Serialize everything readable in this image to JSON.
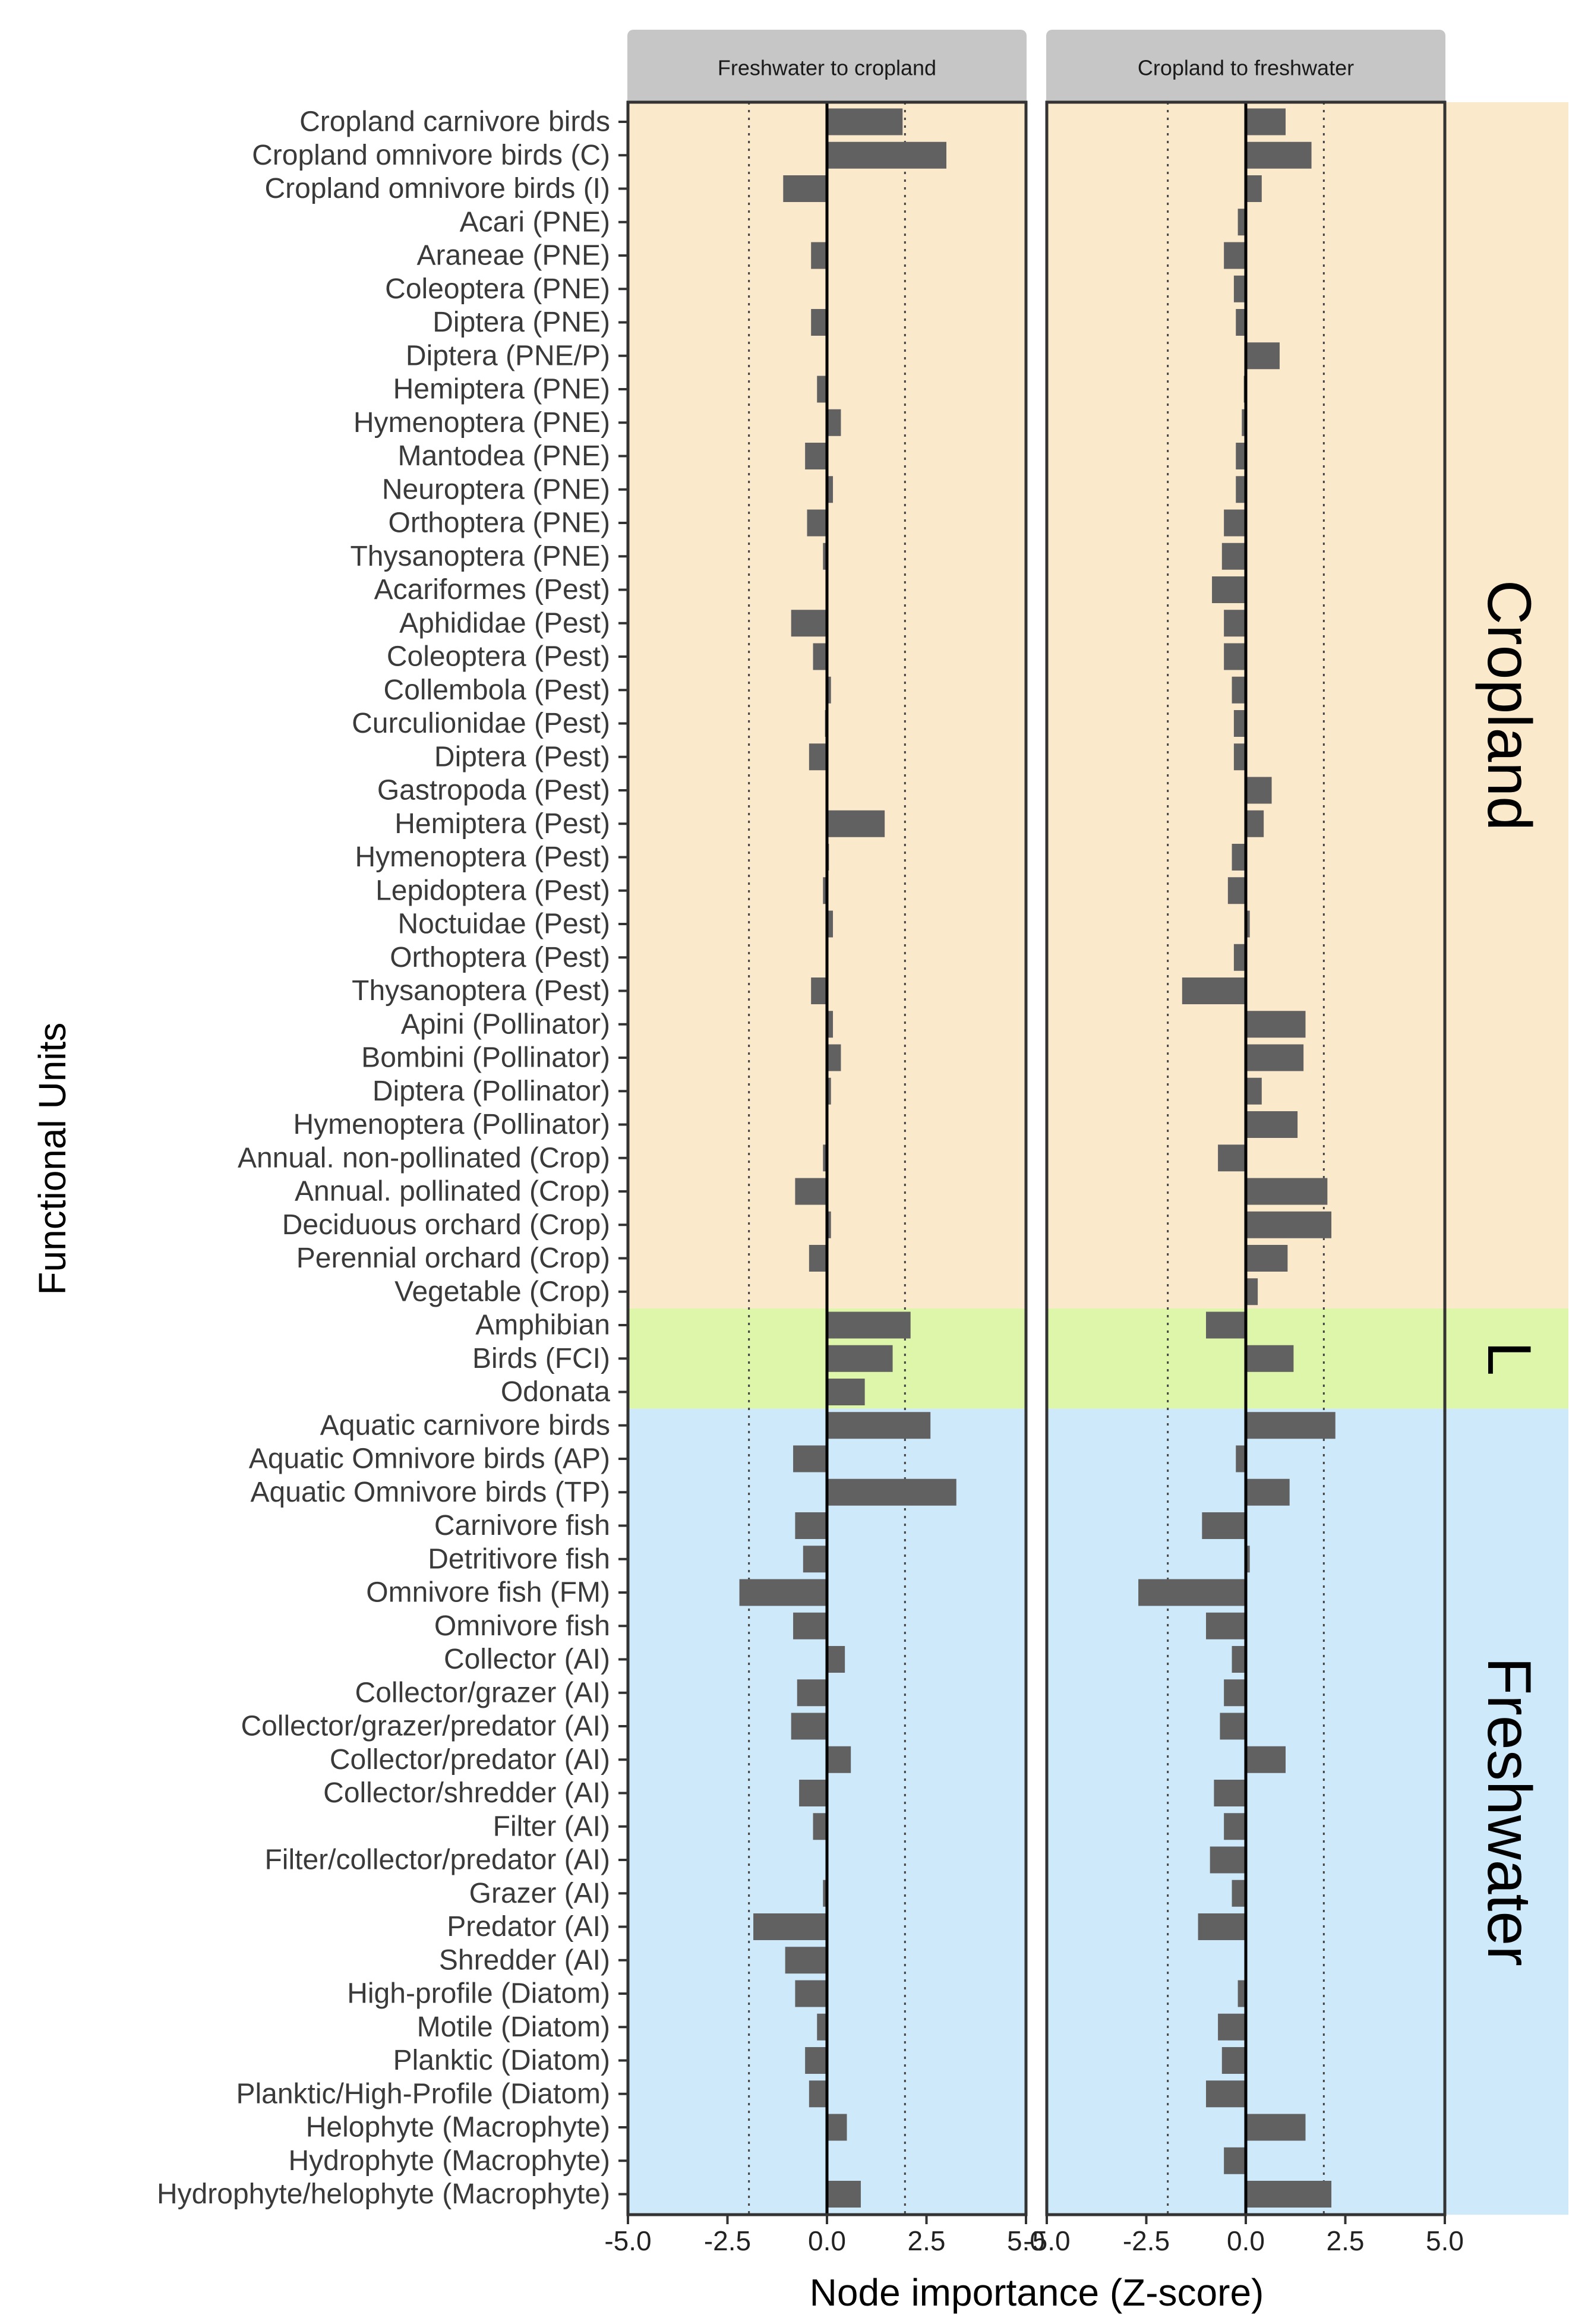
{
  "chart_data": {
    "type": "bar",
    "orientation": "horizontal",
    "xlabel": "Node importance (Z-score)",
    "ylabel": "Functional Units",
    "xlim": [
      -5.0,
      5.0
    ],
    "xticks": [
      -5.0,
      -2.5,
      0.0,
      2.5,
      5.0
    ],
    "xtick_labels": [
      "-5.0",
      "-2.5",
      "0.0",
      "2.5",
      "5.0"
    ],
    "reference_lines": {
      "solid": [
        0.0
      ],
      "dotted": [
        -1.96,
        1.96
      ]
    },
    "bar_color": "#616161",
    "groups": [
      {
        "label": "Cropland",
        "color": "#fbe9cc",
        "first": 0,
        "last": 35
      },
      {
        "label": "L",
        "color": "#ddf6a9",
        "first": 36,
        "last": 38
      },
      {
        "label": "Freshwater",
        "color": "#cde9fa",
        "first": 39,
        "last": 62
      }
    ],
    "categories": [
      "Cropland carnivore birds",
      "Cropland omnivore birds (C)",
      "Cropland omnivore birds (I)",
      "Acari (PNE)",
      "Araneae (PNE)",
      "Coleoptera (PNE)",
      "Diptera (PNE)",
      "Diptera (PNE/P)",
      "Hemiptera (PNE)",
      "Hymenoptera (PNE)",
      "Mantodea (PNE)",
      "Neuroptera (PNE)",
      "Orthoptera (PNE)",
      "Thysanoptera (PNE)",
      "Acariformes (Pest)",
      "Aphididae (Pest)",
      "Coleoptera (Pest)",
      "Collembola (Pest)",
      "Curculionidae (Pest)",
      "Diptera (Pest)",
      "Gastropoda (Pest)",
      "Hemiptera (Pest)",
      "Hymenoptera (Pest)",
      "Lepidoptera (Pest)",
      "Noctuidae (Pest)",
      "Orthoptera (Pest)",
      "Thysanoptera (Pest)",
      "Apini (Pollinator)",
      "Bombini (Pollinator)",
      "Diptera (Pollinator)",
      "Hymenoptera (Pollinator)",
      "Annual. non-pollinated (Crop)",
      "Annual. pollinated (Crop)",
      "Deciduous orchard (Crop)",
      "Perennial orchard (Crop)",
      "Vegetable (Crop)",
      "Amphibian",
      "Birds (FCI)",
      "Odonata",
      "Aquatic carnivore birds",
      "Aquatic Omnivore birds (AP)",
      "Aquatic Omnivore birds (TP)",
      "Carnivore fish",
      "Detritivore fish",
      "Omnivore fish (FM)",
      "Omnivore fish",
      "Collector (AI)",
      "Collector/grazer (AI)",
      "Collector/grazer/predator (AI)",
      "Collector/predator (AI)",
      "Collector/shredder (AI)",
      "Filter (AI)",
      "Filter/collector/predator (AI)",
      "Grazer (AI)",
      "Predator (AI)",
      "Shredder (AI)",
      "High-profile (Diatom)",
      "Motile (Diatom)",
      "Planktic (Diatom)",
      "Planktic/High-Profile (Diatom)",
      "Helophyte (Macrophyte)",
      "Hydrophyte (Macrophyte)",
      "Hydrophyte/helophyte (Macrophyte)"
    ],
    "panels": [
      {
        "title": "Freshwater to cropland",
        "values": [
          1.9,
          3.0,
          -1.1,
          0.0,
          -0.4,
          0.0,
          -0.4,
          0.0,
          -0.25,
          0.35,
          -0.55,
          0.15,
          -0.5,
          -0.1,
          0.0,
          -0.9,
          -0.35,
          0.1,
          -0.05,
          -0.45,
          0.0,
          1.45,
          0.05,
          -0.1,
          0.15,
          0.0,
          -0.4,
          0.15,
          0.35,
          0.1,
          0.0,
          -0.1,
          -0.8,
          0.1,
          -0.45,
          0.0,
          2.1,
          1.65,
          0.95,
          2.6,
          -0.85,
          3.25,
          -0.8,
          -0.6,
          -2.2,
          -0.85,
          0.45,
          -0.75,
          -0.9,
          0.6,
          -0.7,
          -0.35,
          0.0,
          -0.1,
          -1.85,
          -1.05,
          -0.8,
          -0.25,
          -0.55,
          -0.45,
          0.5,
          0.0,
          0.85
        ]
      },
      {
        "title": "Cropland to freshwater",
        "values": [
          1.0,
          1.65,
          0.4,
          -0.2,
          -0.55,
          -0.3,
          -0.25,
          0.85,
          -0.05,
          -0.1,
          -0.25,
          -0.25,
          -0.55,
          -0.6,
          -0.85,
          -0.55,
          -0.55,
          -0.35,
          -0.3,
          -0.3,
          0.65,
          0.45,
          -0.35,
          -0.45,
          0.1,
          -0.3,
          -1.6,
          1.5,
          1.45,
          0.4,
          1.3,
          -0.7,
          2.05,
          2.15,
          1.05,
          0.3,
          -1.0,
          1.2,
          0.0,
          2.25,
          -0.25,
          1.1,
          -1.1,
          0.1,
          -2.7,
          -1.0,
          -0.35,
          -0.55,
          -0.65,
          1.0,
          -0.8,
          -0.55,
          -0.9,
          -0.35,
          -1.2,
          0.0,
          -0.2,
          -0.7,
          -0.6,
          -1.0,
          1.5,
          -0.55,
          2.15
        ]
      }
    ]
  }
}
